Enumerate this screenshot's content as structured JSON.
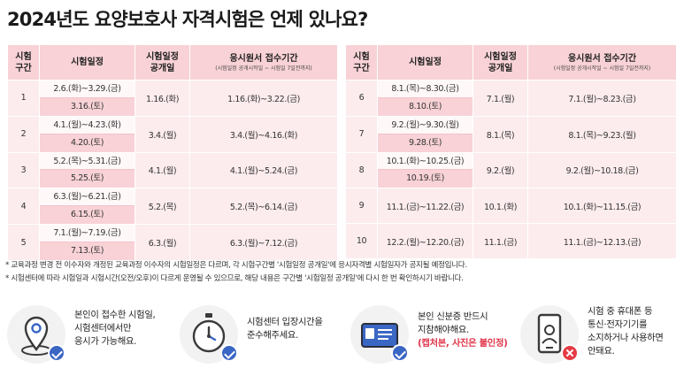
{
  "title": "2024년도 요양보호사 자격시험은 언제 있나요?",
  "headers": {
    "round": "시험\n구간",
    "period": "시험일정",
    "announce": "시험일정\n공개일",
    "apply": "응시원서 접수기간",
    "apply_sub": "(시험일정 공개시작일 ~ 시험일 7일전까지)"
  },
  "left_rows": [
    {
      "no": "1",
      "period": "2.6.(화)~3.29.(금)",
      "written": "3.16.(토)",
      "announce": "1.16.(화)",
      "apply": "1.16.(화)~3.22.(금)"
    },
    {
      "no": "2",
      "period": "4.1.(월)~4.23.(화)",
      "written": "4.20.(토)",
      "announce": "3.4.(월)",
      "apply": "3.4.(월)~4.16.(화)"
    },
    {
      "no": "3",
      "period": "5.2.(목)~5.31.(금)",
      "written": "5.25.(토)",
      "announce": "4.1.(월)",
      "apply": "4.1.(월)~5.24.(금)"
    },
    {
      "no": "4",
      "period": "6.3.(월)~6.21.(금)",
      "written": "6.15.(토)",
      "announce": "5.2.(목)",
      "apply": "5.2.(목)~6.14.(금)"
    },
    {
      "no": "5",
      "period": "7.1.(월)~7.19.(금)",
      "written": "7.13.(토)",
      "announce": "6.3.(월)",
      "apply": "6.3.(월)~7.12.(금)"
    }
  ],
  "right_rows": [
    {
      "no": "6",
      "period": "8.1.(목)~8.30.(금)",
      "written": "8.10.(토)",
      "announce": "7.1.(월)",
      "apply": "7.1.(월)~8.23.(금)"
    },
    {
      "no": "7",
      "period": "9.2.(월)~9.30.(월)",
      "written": "9.28.(토)",
      "announce": "8.1.(목)",
      "apply": "8.1.(목)~9.23.(월)"
    },
    {
      "no": "8",
      "period": "10.1.(화)~10.25.(금)",
      "written": "10.19.(토)",
      "announce": "9.2.(월)",
      "apply": "9.2.(월)~10.18.(금)"
    },
    {
      "no": "9",
      "period": "11.1.(금)~11.22.(금)",
      "written": "",
      "announce": "10.1.(화)",
      "apply": "10.1.(화)~11.15.(금)"
    },
    {
      "no": "10",
      "period": "12.2.(월)~12.20.(금)",
      "written": "",
      "announce": "11.1.(금)",
      "apply": "11.1.(금)~12.13.(금)"
    }
  ],
  "notes": [
    "* 교육과정 변경 전 이수자와 개정된 교육과정 이수자의 시험일정은 다르며, 각 시험구간별 '시험일정 공개일'에 응시자격별 시험일자가 공지될 예정입니다.",
    "* 시험센터에 따라 시험일과 시험시간(오전/오후)이 다르게 운영될 수 있으므로, 해당 내용은 구간별 '시험일정 공개일'에 다시 한 번 확인하시기 바랍니다."
  ],
  "tips": [
    {
      "icon": "location-pin-icon",
      "lines": [
        "본인이 접수한 시험일,",
        "시험센터에서만",
        "응시가 가능해요."
      ],
      "highlight": ""
    },
    {
      "icon": "stopwatch-icon",
      "lines": [
        "시험센터 입장시간을",
        "준수해주세요."
      ],
      "highlight": ""
    },
    {
      "icon": "id-card-icon",
      "lines": [
        "본인 신분증 반드시",
        "지참해야해요."
      ],
      "highlight": "(캡처본, 사진은 불인정)"
    },
    {
      "icon": "phone-prohibited-icon",
      "lines": [
        "시험 중 휴대폰 등",
        "통신·전자기기를",
        "소지하거나 사용하면",
        "안돼요."
      ],
      "highlight": ""
    }
  ],
  "colors": {
    "header_bg": "#f8d2d6",
    "cell_bg": "#fcecee",
    "accent_blue": "#3a66c4",
    "accent_red": "#e53b45",
    "highlight_text": "#e0354a"
  }
}
